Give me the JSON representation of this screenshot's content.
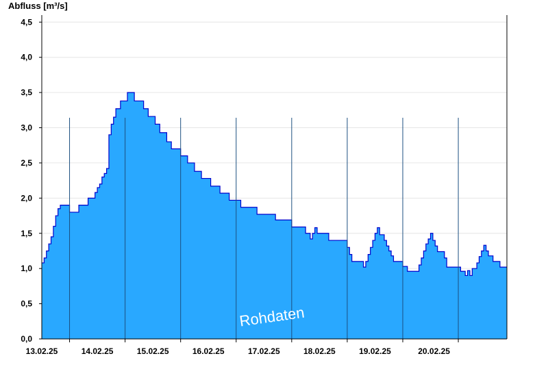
{
  "chart_data": {
    "type": "area",
    "title": "",
    "ylabel": "Abfluss [m³/s]",
    "xlabel": "",
    "watermark": "Rohdaten",
    "ylim": [
      0,
      4.6
    ],
    "yticks": [
      {
        "value": 0.0,
        "label": "0,0"
      },
      {
        "value": 0.5,
        "label": "0,5"
      },
      {
        "value": 1.0,
        "label": "1,0"
      },
      {
        "value": 1.5,
        "label": "1,5"
      },
      {
        "value": 2.0,
        "label": "2,0"
      },
      {
        "value": 2.5,
        "label": "2,5"
      },
      {
        "value": 3.0,
        "label": "3,0"
      },
      {
        "value": 3.5,
        "label": "3,5"
      },
      {
        "value": 4.0,
        "label": "4,0"
      },
      {
        "value": 4.5,
        "label": "4,5"
      }
    ],
    "xlim": [
      "2025-02-12T12:00",
      "2025-02-20T21:00"
    ],
    "day_boundaries": [
      "2025-02-13T00:00",
      "2025-02-14T00:00",
      "2025-02-15T00:00",
      "2025-02-16T00:00",
      "2025-02-17T00:00",
      "2025-02-18T00:00",
      "2025-02-19T00:00",
      "2025-02-20T00:00"
    ],
    "xticks": [
      {
        "date": "2025-02-13T00:00",
        "label": "13.02.25"
      },
      {
        "date": "2025-02-14T00:00",
        "label": "14.02.25"
      },
      {
        "date": "2025-02-15T00:00",
        "label": "15.02.25"
      },
      {
        "date": "2025-02-16T00:00",
        "label": "16.02.25"
      },
      {
        "date": "2025-02-17T00:00",
        "label": "17.02.25"
      },
      {
        "date": "2025-02-18T00:00",
        "label": "18.02.25"
      },
      {
        "date": "2025-02-19T00:00",
        "label": "19.02.25"
      },
      {
        "date": "2025-02-20T00:00",
        "label": "20.02.25"
      }
    ],
    "grid": "horizontal",
    "colors": {
      "fill": "#29a8ff",
      "line": "#0000cc",
      "grid": "#e6e6e6",
      "divider": "#1c4f80"
    },
    "points": [
      [
        "2025-02-12T12:00",
        1.08
      ],
      [
        "2025-02-12T13:00",
        1.15
      ],
      [
        "2025-02-12T14:00",
        1.25
      ],
      [
        "2025-02-12T15:00",
        1.35
      ],
      [
        "2025-02-12T16:00",
        1.45
      ],
      [
        "2025-02-12T17:00",
        1.6
      ],
      [
        "2025-02-12T18:00",
        1.75
      ],
      [
        "2025-02-12T19:00",
        1.85
      ],
      [
        "2025-02-12T20:00",
        1.9
      ],
      [
        "2025-02-12T23:00",
        1.9
      ],
      [
        "2025-02-13T00:00",
        1.8
      ],
      [
        "2025-02-13T03:00",
        1.8
      ],
      [
        "2025-02-13T04:00",
        1.9
      ],
      [
        "2025-02-13T07:00",
        1.9
      ],
      [
        "2025-02-13T08:00",
        2.0
      ],
      [
        "2025-02-13T10:00",
        2.0
      ],
      [
        "2025-02-13T11:00",
        2.08
      ],
      [
        "2025-02-13T12:00",
        2.15
      ],
      [
        "2025-02-13T13:00",
        2.2
      ],
      [
        "2025-02-13T14:00",
        2.3
      ],
      [
        "2025-02-13T15:00",
        2.35
      ],
      [
        "2025-02-13T16:00",
        2.42
      ],
      [
        "2025-02-13T17:00",
        2.9
      ],
      [
        "2025-02-13T18:00",
        3.05
      ],
      [
        "2025-02-13T19:00",
        3.15
      ],
      [
        "2025-02-13T20:00",
        3.27
      ],
      [
        "2025-02-13T22:00",
        3.38
      ],
      [
        "2025-02-14T01:00",
        3.5
      ],
      [
        "2025-02-14T04:00",
        3.38
      ],
      [
        "2025-02-14T08:00",
        3.27
      ],
      [
        "2025-02-14T10:00",
        3.16
      ],
      [
        "2025-02-14T13:00",
        3.05
      ],
      [
        "2025-02-14T15:00",
        2.93
      ],
      [
        "2025-02-14T18:00",
        2.8
      ],
      [
        "2025-02-14T20:00",
        2.7
      ],
      [
        "2025-02-15T00:00",
        2.6
      ],
      [
        "2025-02-15T03:00",
        2.5
      ],
      [
        "2025-02-15T06:00",
        2.38
      ],
      [
        "2025-02-15T09:00",
        2.28
      ],
      [
        "2025-02-15T13:00",
        2.17
      ],
      [
        "2025-02-15T17:00",
        2.07
      ],
      [
        "2025-02-15T21:00",
        1.97
      ],
      [
        "2025-02-16T02:00",
        1.87
      ],
      [
        "2025-02-16T09:00",
        1.77
      ],
      [
        "2025-02-16T17:00",
        1.69
      ],
      [
        "2025-02-17T00:00",
        1.59
      ],
      [
        "2025-02-17T06:00",
        1.5
      ],
      [
        "2025-02-17T08:00",
        1.42
      ],
      [
        "2025-02-17T09:00",
        1.5
      ],
      [
        "2025-02-17T10:00",
        1.58
      ],
      [
        "2025-02-17T11:00",
        1.5
      ],
      [
        "2025-02-17T16:00",
        1.4
      ],
      [
        "2025-02-18T00:00",
        1.3
      ],
      [
        "2025-02-18T01:00",
        1.2
      ],
      [
        "2025-02-18T02:00",
        1.1
      ],
      [
        "2025-02-18T07:00",
        1.02
      ],
      [
        "2025-02-18T08:00",
        1.1
      ],
      [
        "2025-02-18T09:00",
        1.2
      ],
      [
        "2025-02-18T10:00",
        1.3
      ],
      [
        "2025-02-18T11:00",
        1.4
      ],
      [
        "2025-02-18T12:00",
        1.5
      ],
      [
        "2025-02-18T13:00",
        1.58
      ],
      [
        "2025-02-18T14:00",
        1.48
      ],
      [
        "2025-02-18T16:00",
        1.4
      ],
      [
        "2025-02-18T17:00",
        1.32
      ],
      [
        "2025-02-18T18:00",
        1.25
      ],
      [
        "2025-02-18T19:00",
        1.18
      ],
      [
        "2025-02-18T20:00",
        1.1
      ],
      [
        "2025-02-19T00:00",
        1.03
      ],
      [
        "2025-02-19T02:00",
        0.96
      ],
      [
        "2025-02-19T07:00",
        1.05
      ],
      [
        "2025-02-19T08:00",
        1.15
      ],
      [
        "2025-02-19T09:00",
        1.25
      ],
      [
        "2025-02-19T10:00",
        1.35
      ],
      [
        "2025-02-19T11:00",
        1.42
      ],
      [
        "2025-02-19T12:00",
        1.5
      ],
      [
        "2025-02-19T13:00",
        1.4
      ],
      [
        "2025-02-19T14:00",
        1.32
      ],
      [
        "2025-02-19T15:00",
        1.24
      ],
      [
        "2025-02-19T18:00",
        1.15
      ],
      [
        "2025-02-19T19:00",
        1.02
      ],
      [
        "2025-02-20T01:00",
        0.96
      ],
      [
        "2025-02-20T03:00",
        0.9
      ],
      [
        "2025-02-20T04:00",
        0.97
      ],
      [
        "2025-02-20T05:00",
        0.9
      ],
      [
        "2025-02-20T06:00",
        1.0
      ],
      [
        "2025-02-20T08:00",
        1.08
      ],
      [
        "2025-02-20T09:00",
        1.17
      ],
      [
        "2025-02-20T10:00",
        1.25
      ],
      [
        "2025-02-20T11:00",
        1.33
      ],
      [
        "2025-02-20T12:00",
        1.25
      ],
      [
        "2025-02-20T13:00",
        1.18
      ],
      [
        "2025-02-20T15:00",
        1.1
      ],
      [
        "2025-02-20T18:00",
        1.02
      ],
      [
        "2025-02-20T21:00",
        1.02
      ]
    ]
  }
}
